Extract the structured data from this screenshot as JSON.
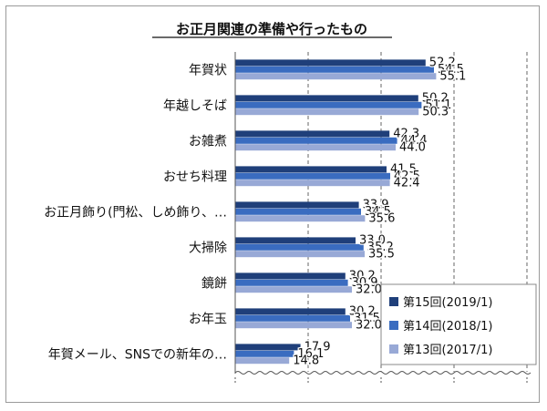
{
  "chart_data": {
    "type": "bar",
    "orientation": "horizontal",
    "title": "お正月関連の準備や行ったもの",
    "categories": [
      "年賀状",
      "年越しそば",
      "お雑煮",
      "おせち料理",
      "お正月飾り(門松、しめ飾り、…",
      "大掃除",
      "鏡餅",
      "お年玉",
      "年賀メール、SNSでの新年の…"
    ],
    "series": [
      {
        "name": "第15回(2019/1)",
        "color": "#1f3f7a",
        "values": [
          52.2,
          50.2,
          42.3,
          41.5,
          33.9,
          33.0,
          30.2,
          30.2,
          17.9
        ],
        "labels": [
          "52.2",
          "50.2",
          "42.3",
          "41.5",
          "33.9",
          "33.0",
          "30.2",
          "30.2",
          "17.9"
        ]
      },
      {
        "name": "第14回(2018/1)",
        "color": "#3a6cc0",
        "values": [
          54.5,
          51.1,
          44.4,
          42.5,
          34.5,
          35.2,
          30.9,
          31.5,
          16.1
        ],
        "labels": [
          "54.5",
          "51.1",
          "44.4",
          "42.5",
          "34.5",
          "35.2",
          "30.9",
          "31.5",
          "16.1"
        ]
      },
      {
        "name": "第13回(2017/1)",
        "color": "#98a9d6",
        "values": [
          55.1,
          50.3,
          44.0,
          42.4,
          35.6,
          35.5,
          32.0,
          32.0,
          14.8
        ],
        "labels": [
          "55.1",
          "50.3",
          "44.0",
          "42.4",
          "35.6",
          "35.5",
          "32.0",
          "32.0",
          "14.8"
        ]
      }
    ],
    "xlim": [
      0,
      100
    ],
    "grid": true,
    "legend_position": "bottom-right",
    "axis_break": true,
    "xlabel": "",
    "ylabel": ""
  }
}
